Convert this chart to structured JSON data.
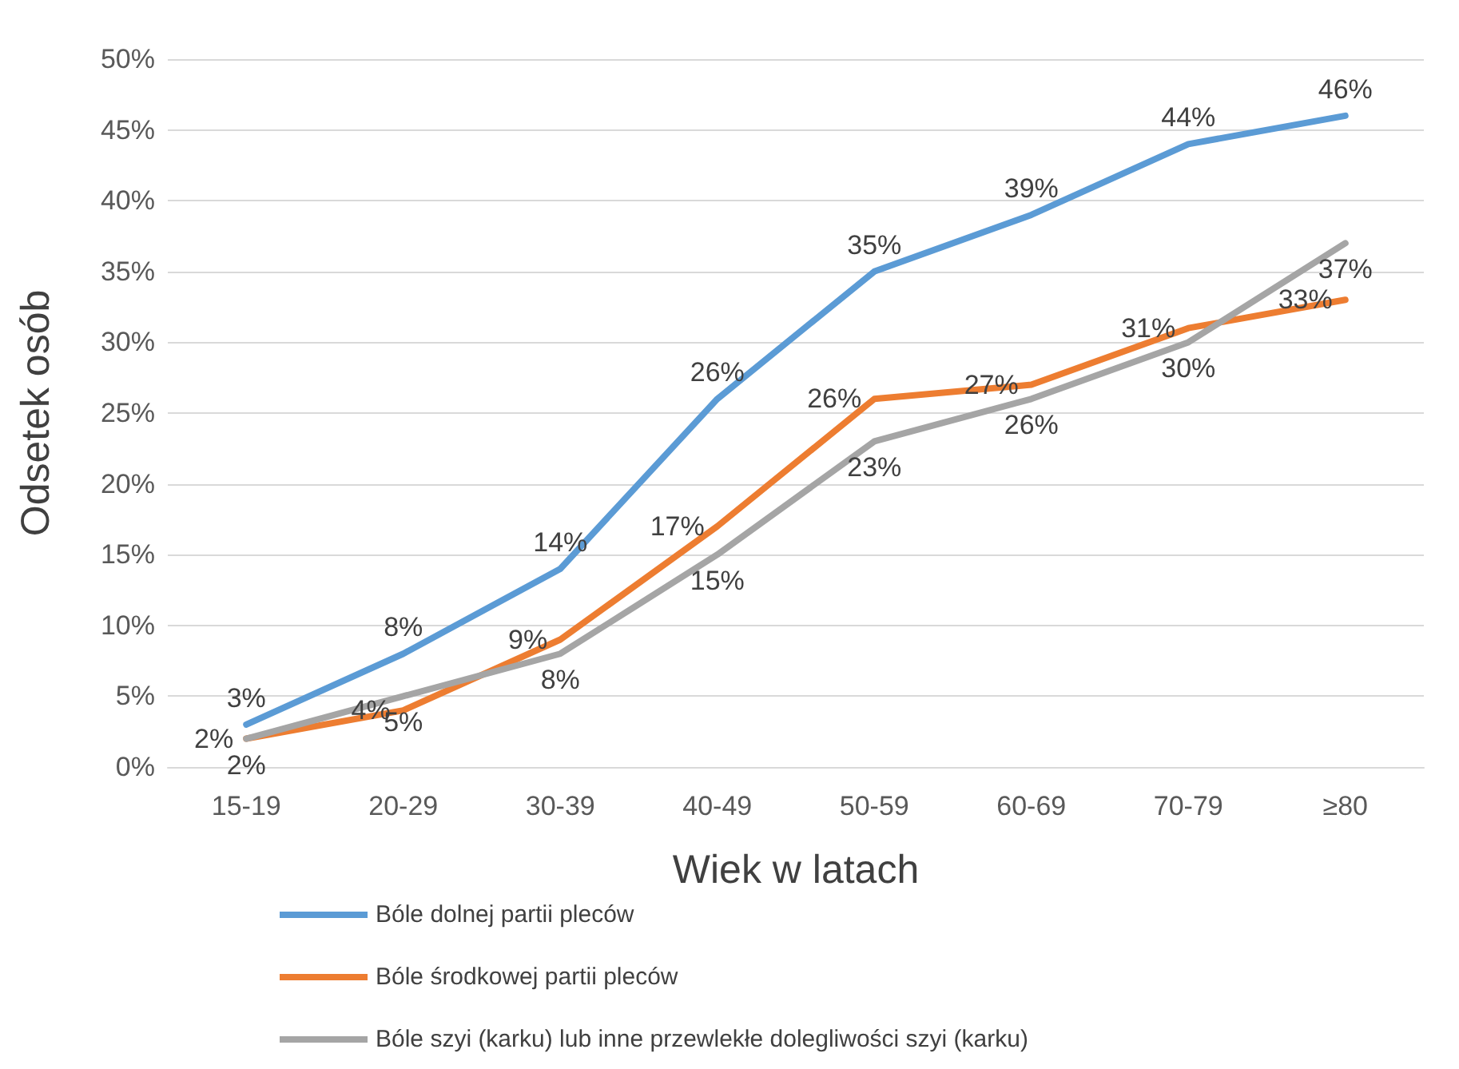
{
  "chart_data": {
    "type": "line",
    "xlabel": "Wiek w latach",
    "ylabel": "Odsetek osób",
    "categories": [
      "15-19",
      "20-29",
      "30-39",
      "40-49",
      "50-59",
      "60-69",
      "70-79",
      "≥80"
    ],
    "ylim": [
      0,
      50
    ],
    "yticks": [
      {
        "value": 0,
        "label": "0%"
      },
      {
        "value": 5,
        "label": "5%"
      },
      {
        "value": 10,
        "label": "10%"
      },
      {
        "value": 15,
        "label": "15%"
      },
      {
        "value": 20,
        "label": "20%"
      },
      {
        "value": 25,
        "label": "25%"
      },
      {
        "value": 30,
        "label": "30%"
      },
      {
        "value": 35,
        "label": "35%"
      },
      {
        "value": 40,
        "label": "40%"
      },
      {
        "value": 45,
        "label": "45%"
      },
      {
        "value": 50,
        "label": "50%"
      }
    ],
    "grid": "y",
    "legend": "bottom",
    "marker": "none",
    "line_style": "solid",
    "series": [
      {
        "name": "Bóle dolnej partii pleców",
        "color": "#5b9bd5",
        "values": [
          3,
          8,
          14,
          26,
          35,
          39,
          44,
          46
        ],
        "value_labels": [
          "3%",
          "8%",
          "14%",
          "26%",
          "35%",
          "39%",
          "44%",
          "46%"
        ]
      },
      {
        "name": "Bóle środkowej partii pleców",
        "color": "#ed7d31",
        "values": [
          2,
          4,
          9,
          17,
          26,
          27,
          31,
          33
        ],
        "value_labels": [
          "2%",
          "4%",
          "9%",
          "17%",
          "26%",
          "27%",
          "31%",
          "33%"
        ]
      },
      {
        "name": "Bóle szyi (karku) lub inne przewlekłe dolegliwości szyi (karku)",
        "color": "#a5a5a5",
        "values": [
          2,
          5,
          8,
          15,
          23,
          26,
          30,
          37
        ],
        "value_labels": [
          "2%",
          "5%",
          "8%",
          "15%",
          "23%",
          "26%",
          "30%",
          "37%"
        ]
      }
    ]
  }
}
